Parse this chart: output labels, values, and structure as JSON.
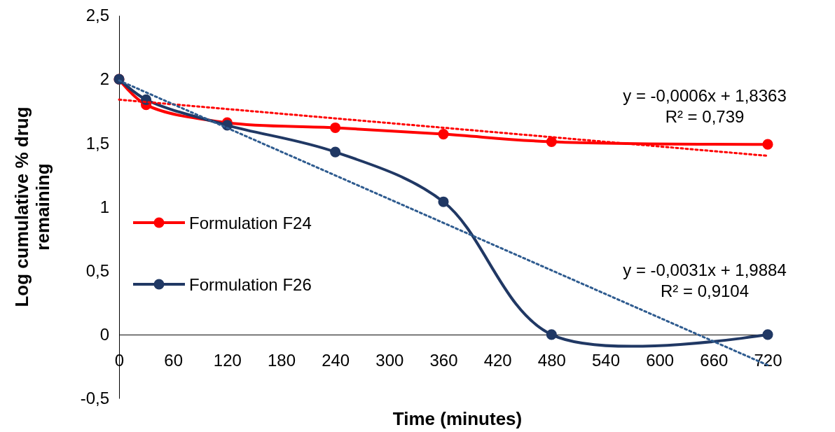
{
  "chart_data": {
    "type": "line",
    "xlabel": "Time (minutes)",
    "ylabel": "Log cumulative % drug remaining",
    "x": [
      0,
      30,
      120,
      240,
      360,
      480,
      720
    ],
    "series": [
      {
        "name": "Formulation F24",
        "color": "#ff0000",
        "values": [
          2,
          1.8,
          1.66,
          1.62,
          1.57,
          1.51,
          1.49
        ],
        "marker": "circle",
        "line_style": "solid"
      },
      {
        "name": "Formulation F26",
        "color": "#203864",
        "values": [
          2,
          1.84,
          1.64,
          1.43,
          1.04,
          0,
          0
        ],
        "marker": "circle",
        "line_style": "solid"
      },
      {
        "type": "line",
        "color": "#ff0000",
        "values": [
          1.84,
          null,
          null,
          null,
          null,
          null,
          1.4
        ],
        "marker": "none",
        "line_style": "dotted"
      },
      {
        "type": "line",
        "color": "#2e5b8f",
        "values": [
          1.99,
          null,
          null,
          null,
          null,
          null,
          -0.24
        ],
        "marker": "none",
        "line_style": "dotted"
      }
    ],
    "xlim": [
      0,
      720
    ],
    "xticks": [
      0,
      60,
      120,
      180,
      240,
      300,
      360,
      420,
      480,
      540,
      600,
      660,
      720
    ],
    "ylim": [
      -0.5,
      2.5
    ],
    "yticks": [
      {
        "value": -0.5,
        "label": "-0,5"
      },
      0,
      {
        "value": 0.5,
        "label": "0,5"
      },
      1,
      {
        "value": 1.5,
        "label": "1,5"
      },
      2,
      {
        "value": 2.5,
        "label": "2,5"
      }
    ],
    "grid": false,
    "legend": "left",
    "annotations": [
      "y = -0,0006x + 1,8363\nR² = 0,739",
      "y = -0,0031x + 1,9884\nR² = 0,9104"
    ]
  }
}
